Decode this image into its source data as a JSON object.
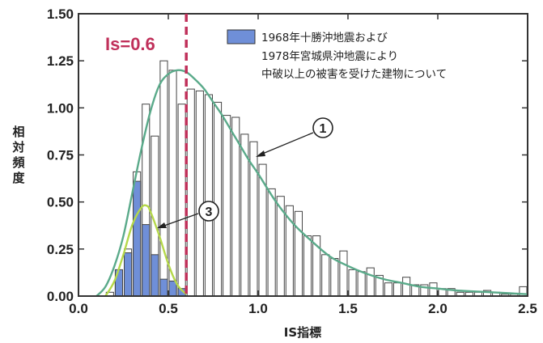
{
  "chart_data": {
    "type": "bar",
    "xlabel": "IS指標",
    "ylabel": "相対頻度",
    "xlim": [
      0.0,
      2.5
    ],
    "ylim": [
      0.0,
      1.5
    ],
    "x_ticks": [
      "0.0",
      "0.5",
      "1.0",
      "1.5",
      "2.0",
      "2.5"
    ],
    "y_ticks": [
      "0.00",
      "0.25",
      "0.50",
      "0.75",
      "1.00",
      "1.25",
      "1.50"
    ],
    "bin_width": 0.05,
    "grid": false,
    "legend_position": "top-right",
    "legend": [
      "1968年十勝沖地震および",
      "1978年宮城県沖地震により",
      "中破以上の被害を受けた建物について"
    ],
    "threshold": {
      "x": 0.6,
      "label": "Is=0.6",
      "color": "#c0305a"
    },
    "series": [
      {
        "name": "1968年十勝沖地震および1978年宮城県沖地震により中破以上の被害を受けた建物について",
        "color": "#6f8fd8",
        "bins_start": [
          0.2,
          0.25,
          0.3,
          0.35,
          0.4,
          0.45,
          0.5,
          0.55
        ],
        "values": [
          0.14,
          0.23,
          0.61,
          0.38,
          0.22,
          0.09,
          0.08,
          0.04
        ]
      },
      {
        "name": "",
        "color": "#ffffff",
        "bins_start": [
          0.15,
          0.2,
          0.25,
          0.3,
          0.35,
          0.4,
          0.45,
          0.5,
          0.55,
          0.6,
          0.65,
          0.7,
          0.75,
          0.8,
          0.85,
          0.9,
          0.95,
          1.0,
          1.05,
          1.1,
          1.15,
          1.2,
          1.25,
          1.3,
          1.35,
          1.4,
          1.45,
          1.5,
          1.55,
          1.6,
          1.65,
          1.7,
          1.75,
          1.8,
          1.85,
          1.9,
          1.95,
          2.0,
          2.05,
          2.1,
          2.15,
          2.2,
          2.25,
          2.3,
          2.35,
          2.4,
          2.45
        ],
        "values": [
          0.02,
          0.09,
          0.25,
          0.66,
          1.02,
          0.85,
          1.25,
          1.2,
          1.02,
          1.1,
          1.09,
          1.07,
          1.03,
          0.96,
          0.95,
          0.86,
          0.82,
          0.7,
          0.57,
          0.53,
          0.48,
          0.45,
          0.32,
          0.32,
          0.22,
          0.2,
          0.24,
          0.14,
          0.13,
          0.15,
          0.11,
          0.07,
          0.07,
          0.1,
          0.06,
          0.06,
          0.07,
          0.04,
          0.04,
          0.02,
          0.02,
          0.02,
          0.03,
          0.02,
          0.01,
          0.01,
          0.05
        ]
      }
    ],
    "curves": [
      {
        "name": "",
        "callout": "1",
        "color": "#5aaa8a",
        "x": [
          0.1,
          0.15,
          0.2,
          0.25,
          0.3,
          0.35,
          0.4,
          0.45,
          0.5,
          0.55,
          0.6,
          0.65,
          0.7,
          0.75,
          0.8,
          0.85,
          0.9,
          0.95,
          1.0,
          1.1,
          1.2,
          1.3,
          1.4,
          1.5,
          1.6,
          1.7,
          1.8,
          1.9,
          2.0,
          2.1,
          2.2,
          2.3,
          2.4,
          2.5
        ],
        "y": [
          0.0,
          0.05,
          0.16,
          0.32,
          0.55,
          0.78,
          0.98,
          1.12,
          1.18,
          1.2,
          1.19,
          1.15,
          1.1,
          1.03,
          0.96,
          0.88,
          0.8,
          0.72,
          0.65,
          0.5,
          0.38,
          0.29,
          0.21,
          0.16,
          0.12,
          0.09,
          0.07,
          0.05,
          0.04,
          0.03,
          0.025,
          0.02,
          0.015,
          0.01
        ]
      },
      {
        "name": "",
        "callout": "3",
        "color": "#b5d84a",
        "x": [
          0.15,
          0.2,
          0.25,
          0.3,
          0.35,
          0.38,
          0.4,
          0.45,
          0.5,
          0.55,
          0.6
        ],
        "y": [
          0.0,
          0.08,
          0.22,
          0.38,
          0.47,
          0.48,
          0.45,
          0.32,
          0.17,
          0.06,
          0.01
        ]
      }
    ]
  }
}
